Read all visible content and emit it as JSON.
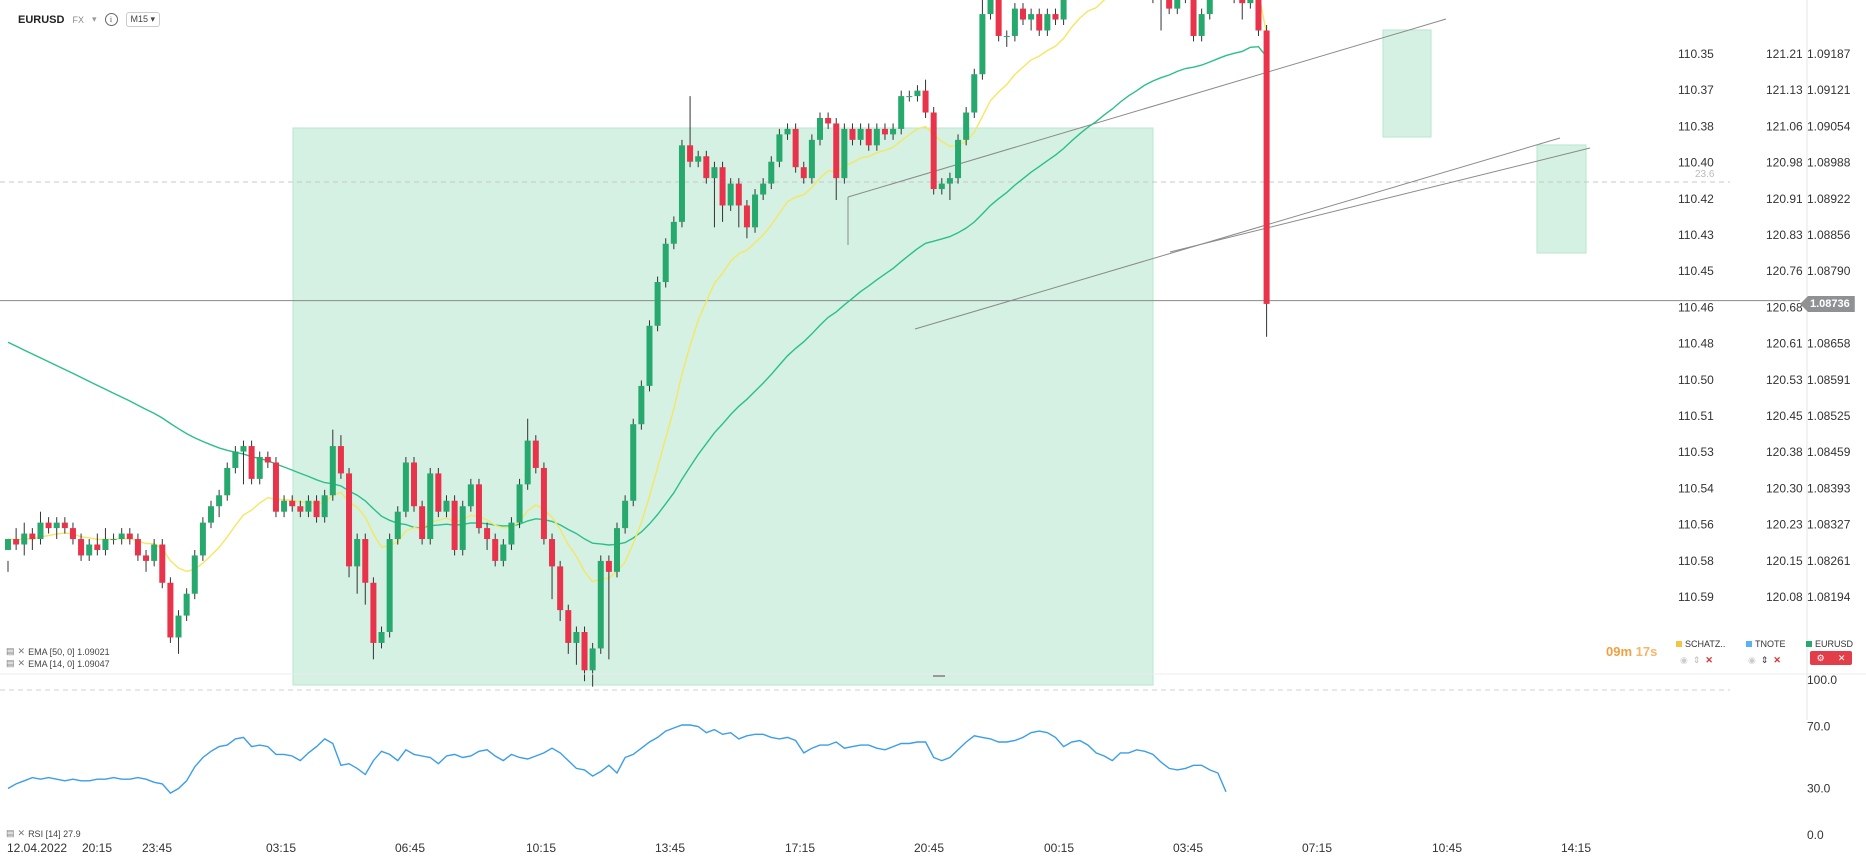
{
  "header": {
    "symbol": "EURUSD",
    "market": "FX",
    "timeframe": "M15"
  },
  "indicators": {
    "ema50": "EMA [50, 0] 1.09021",
    "ema14": "EMA [14, 0] 1.09047",
    "rsi": "RSI [14] 27.9"
  },
  "timer": {
    "minutes": "09m",
    "seconds": "17s"
  },
  "tickers": [
    "SCHATZ..",
    "TNOTE",
    "EURUSD"
  ],
  "current_price": "1.08736",
  "fib_label": "23.6",
  "colors": {
    "bull": "#27a86d",
    "bear": "#e8334a",
    "ema14": "#f5e663",
    "ema50": "#2bbf8a",
    "rsi": "#3a9ee8",
    "zone": "#d4f1e4",
    "schatz": "#f5c542",
    "tnote": "#5ab3f0",
    "eurusd": "#27a86d"
  },
  "chart_data": {
    "type": "candlestick",
    "symbol": "EURUSD",
    "timeframe": "M15",
    "price_axes": [
      {
        "name": "SCHATZ",
        "labels": [
          "110.35",
          "110.37",
          "110.38",
          "110.40",
          "110.42",
          "110.43",
          "110.45",
          "110.46",
          "110.48",
          "110.50",
          "110.51",
          "110.53",
          "110.54",
          "110.56",
          "110.58",
          "110.59"
        ]
      },
      {
        "name": "TNOTE",
        "labels": [
          "121.21",
          "121.13",
          "121.06",
          "120.98",
          "120.91",
          "120.83",
          "120.76",
          "120.68",
          "120.61",
          "120.53",
          "120.45",
          "120.38",
          "120.30",
          "120.23",
          "120.15",
          "120.08"
        ]
      },
      {
        "name": "EURUSD",
        "labels": [
          "1.09187",
          "1.09121",
          "1.09054",
          "1.08988",
          "1.08922",
          "1.08856",
          "1.08790",
          "1.08724",
          "1.08658",
          "1.08591",
          "1.08525",
          "1.08459",
          "1.08393",
          "1.08327",
          "1.08261",
          "1.08194"
        ]
      }
    ],
    "rsi_axis": [
      "100.0",
      "70.0",
      "30.0",
      "0.0"
    ],
    "time_labels": [
      "12.04.2022",
      "20:15",
      "23:45",
      "03:15",
      "06:45",
      "10:15",
      "13:45",
      "17:15",
      "20:45",
      "00:15",
      "03:45",
      "07:15",
      "10:45",
      "14:15"
    ],
    "candles": [
      [
        1.0828,
        1.083,
        1.0826,
        1.0824
      ],
      [
        1.083,
        1.0829,
        1.0832,
        1.0828
      ],
      [
        1.0829,
        1.0831,
        1.0833,
        1.0827
      ],
      [
        1.0831,
        1.083,
        1.0832,
        1.0828
      ],
      [
        1.083,
        1.0833,
        1.0835,
        1.0829
      ],
      [
        1.0833,
        1.0832,
        1.0834,
        1.0831
      ],
      [
        1.0832,
        1.0833,
        1.0834,
        1.083
      ],
      [
        1.0833,
        1.0832,
        1.0834,
        1.0831
      ],
      [
        1.0832,
        1.083,
        1.0833,
        1.0829
      ],
      [
        1.083,
        1.0827,
        1.0831,
        1.0826
      ],
      [
        1.0827,
        1.0829,
        1.083,
        1.0826
      ],
      [
        1.0829,
        1.0828,
        1.0831,
        1.0827
      ],
      [
        1.0828,
        1.083,
        1.0832,
        1.0827
      ],
      [
        1.083,
        1.083,
        1.0831,
        1.0829
      ],
      [
        1.083,
        1.0831,
        1.0832,
        1.0829
      ],
      [
        1.0831,
        1.083,
        1.0832,
        1.0829
      ],
      [
        1.083,
        1.0827,
        1.0831,
        1.0826
      ],
      [
        1.0827,
        1.0826,
        1.0828,
        1.0824
      ],
      [
        1.0826,
        1.0829,
        1.083,
        1.0825
      ],
      [
        1.0829,
        1.0822,
        1.083,
        1.0821
      ],
      [
        1.0822,
        1.0812,
        1.0823,
        1.0811
      ],
      [
        1.0812,
        1.0816,
        1.0817,
        1.0809
      ],
      [
        1.0816,
        1.082,
        1.0821,
        1.0815
      ],
      [
        1.082,
        1.0827,
        1.0828,
        1.0819
      ],
      [
        1.0827,
        1.0833,
        1.0834,
        1.0826
      ],
      [
        1.0833,
        1.0836,
        1.0837,
        1.0832
      ],
      [
        1.0836,
        1.0838,
        1.0839,
        1.0834
      ],
      [
        1.0838,
        1.0843,
        1.0844,
        1.0837
      ],
      [
        1.0843,
        1.0846,
        1.0847,
        1.0842
      ],
      [
        1.0846,
        1.0847,
        1.0848,
        1.084
      ],
      [
        1.0847,
        1.0841,
        1.0848,
        1.084
      ],
      [
        1.0841,
        1.0845,
        1.0846,
        1.084
      ],
      [
        1.0845,
        1.0844,
        1.0846,
        1.0843
      ],
      [
        1.0844,
        1.0835,
        1.0845,
        1.0834
      ],
      [
        1.0835,
        1.0837,
        1.0838,
        1.0834
      ],
      [
        1.0837,
        1.0836,
        1.0838,
        1.0835
      ],
      [
        1.0836,
        1.0835,
        1.0837,
        1.0834
      ],
      [
        1.0835,
        1.0837,
        1.0838,
        1.0834
      ],
      [
        1.0837,
        1.0834,
        1.0838,
        1.0833
      ],
      [
        1.0834,
        1.0838,
        1.0839,
        1.0833
      ],
      [
        1.0838,
        1.0847,
        1.085,
        1.0837
      ],
      [
        1.0847,
        1.0842,
        1.0849,
        1.0841
      ],
      [
        1.0842,
        1.0825,
        1.0843,
        1.0823
      ],
      [
        1.0825,
        1.083,
        1.0831,
        1.082
      ],
      [
        1.083,
        1.0822,
        1.0831,
        1.0818
      ],
      [
        1.0822,
        1.0811,
        1.0823,
        1.0808
      ],
      [
        1.0811,
        1.0813,
        1.0814,
        1.081
      ],
      [
        1.0813,
        1.083,
        1.0831,
        1.0812
      ],
      [
        1.083,
        1.0835,
        1.0836,
        1.0829
      ],
      [
        1.0835,
        1.0844,
        1.0845,
        1.0834
      ],
      [
        1.0844,
        1.0836,
        1.0845,
        1.0835
      ],
      [
        1.0836,
        1.083,
        1.0837,
        1.0829
      ],
      [
        1.083,
        1.0842,
        1.0843,
        1.0829
      ],
      [
        1.0842,
        1.0835,
        1.0843,
        1.0834
      ],
      [
        1.0835,
        1.0837,
        1.0838,
        1.0834
      ],
      [
        1.0837,
        1.0828,
        1.0838,
        1.0827
      ],
      [
        1.0828,
        1.0836,
        1.0837,
        1.0827
      ],
      [
        1.0836,
        1.084,
        1.0841,
        1.0835
      ],
      [
        1.084,
        1.0832,
        1.0841,
        1.0831
      ],
      [
        1.0832,
        1.083,
        1.0833,
        1.0828
      ],
      [
        1.083,
        1.0826,
        1.0831,
        1.0825
      ],
      [
        1.0826,
        1.0829,
        1.083,
        1.0825
      ],
      [
        1.0829,
        1.0833,
        1.0834,
        1.0828
      ],
      [
        1.0833,
        1.084,
        1.0841,
        1.0832
      ],
      [
        1.084,
        1.0848,
        1.0852,
        1.0839
      ],
      [
        1.0848,
        1.0843,
        1.0849,
        1.0842
      ],
      [
        1.0843,
        1.083,
        1.0844,
        1.0829
      ],
      [
        1.083,
        1.0825,
        1.0831,
        1.0819
      ],
      [
        1.0825,
        1.0817,
        1.0826,
        1.0815
      ],
      [
        1.0817,
        1.0811,
        1.0818,
        1.0809
      ],
      [
        1.0811,
        1.0813,
        1.0814,
        1.0807
      ],
      [
        1.0813,
        1.0806,
        1.0814,
        1.0804
      ],
      [
        1.0806,
        1.081,
        1.0811,
        1.0803
      ],
      [
        1.081,
        1.0826,
        1.0827,
        1.0809
      ],
      [
        1.0826,
        1.0824,
        1.0827,
        1.0808
      ],
      [
        1.0824,
        1.0832,
        1.0833,
        1.0823
      ],
      [
        1.0832,
        1.0837,
        1.0838,
        1.0831
      ],
      [
        1.0837,
        1.0851,
        1.0852,
        1.0836
      ],
      [
        1.0851,
        1.0858,
        1.0859,
        1.085
      ],
      [
        1.0858,
        1.0869,
        1.087,
        1.0857
      ],
      [
        1.0869,
        1.0877,
        1.0878,
        1.0868
      ],
      [
        1.0877,
        1.0884,
        1.0885,
        1.0876
      ],
      [
        1.0884,
        1.0888,
        1.0889,
        1.0883
      ],
      [
        1.0888,
        1.0902,
        1.0903,
        1.0887
      ],
      [
        1.0902,
        1.0899,
        1.0911,
        1.0898
      ],
      [
        1.0899,
        1.09,
        1.0901,
        1.0898
      ],
      [
        1.09,
        1.0896,
        1.0901,
        1.0895
      ],
      [
        1.0896,
        1.0898,
        1.0899,
        1.0887
      ],
      [
        1.0898,
        1.0891,
        1.0899,
        1.0888
      ],
      [
        1.0891,
        1.0895,
        1.0896,
        1.089
      ],
      [
        1.0895,
        1.0891,
        1.0896,
        1.0887
      ],
      [
        1.0891,
        1.0887,
        1.0892,
        1.0885
      ],
      [
        1.0887,
        1.0893,
        1.0894,
        1.0886
      ],
      [
        1.0893,
        1.0895,
        1.0896,
        1.0892
      ],
      [
        1.0895,
        1.0899,
        1.09,
        1.0894
      ],
      [
        1.0899,
        1.0904,
        1.0905,
        1.0898
      ],
      [
        1.0904,
        1.0905,
        1.0906,
        1.0903
      ],
      [
        1.0905,
        1.0898,
        1.0906,
        1.0897
      ],
      [
        1.0898,
        1.0896,
        1.0899,
        1.0895
      ],
      [
        1.0896,
        1.0903,
        1.0904,
        1.0895
      ],
      [
        1.0903,
        1.0907,
        1.0908,
        1.0902
      ],
      [
        1.0907,
        1.0906,
        1.0908,
        1.0905
      ],
      [
        1.0906,
        1.0896,
        1.0907,
        1.0892
      ],
      [
        1.0896,
        1.0905,
        1.0906,
        1.0895
      ],
      [
        1.0905,
        1.0903,
        1.0906,
        1.0902
      ],
      [
        1.0903,
        1.0905,
        1.0906,
        1.0902
      ],
      [
        1.0905,
        1.0902,
        1.0906,
        1.0901
      ],
      [
        1.0902,
        1.0905,
        1.0906,
        1.0901
      ],
      [
        1.0905,
        1.0904,
        1.0906,
        1.0903
      ],
      [
        1.0904,
        1.0905,
        1.0906,
        1.0903
      ],
      [
        1.0905,
        1.0911,
        1.0912,
        1.0904
      ],
      [
        1.0911,
        1.0911,
        1.0912,
        1.091
      ],
      [
        1.0911,
        1.0912,
        1.0913,
        1.091
      ],
      [
        1.0912,
        1.0908,
        1.0914,
        1.0907
      ],
      [
        1.0908,
        1.0894,
        1.0909,
        1.0893
      ],
      [
        1.0894,
        1.0895,
        1.0896,
        1.0893
      ],
      [
        1.0895,
        1.0896,
        1.0897,
        1.0892
      ],
      [
        1.0896,
        1.0903,
        1.0904,
        1.0895
      ],
      [
        1.0903,
        1.0908,
        1.0909,
        1.0902
      ],
      [
        1.0908,
        1.0915,
        1.0916,
        1.0907
      ],
      [
        1.0915,
        1.0926,
        1.0931,
        1.0914
      ],
      [
        1.0926,
        1.0929,
        1.093,
        1.0925
      ],
      [
        1.0929,
        1.0922,
        1.093,
        1.0921
      ],
      [
        1.0922,
        1.0922,
        1.0923,
        1.092
      ],
      [
        1.0922,
        1.0927,
        1.0928,
        1.0921
      ],
      [
        1.0927,
        1.0925,
        1.0928,
        1.0924
      ],
      [
        1.0925,
        1.0926,
        1.0927,
        1.0923
      ],
      [
        1.0926,
        1.0923,
        1.0927,
        1.0922
      ],
      [
        1.0923,
        1.0926,
        1.0927,
        1.0922
      ],
      [
        1.0926,
        1.0925,
        1.0927,
        1.0924
      ],
      [
        1.0925,
        1.0931,
        1.0932,
        1.0924
      ],
      [
        1.0931,
        1.0937,
        1.0938,
        1.093
      ],
      [
        1.0937,
        1.0936,
        1.0938,
        1.0935
      ],
      [
        1.0936,
        1.0935,
        1.0937,
        1.0933
      ],
      [
        1.0935,
        1.0931,
        1.0936,
        1.093
      ],
      [
        1.0931,
        1.0938,
        1.0939,
        1.093
      ],
      [
        1.0938,
        1.0935,
        1.0939,
        1.0934
      ],
      [
        1.0935,
        1.0941,
        1.0942,
        1.0934
      ],
      [
        1.0941,
        1.0939,
        1.0942,
        1.0938
      ],
      [
        1.0939,
        1.0935,
        1.0941,
        1.0934
      ],
      [
        1.0935,
        1.0938,
        1.0945,
        1.0934
      ],
      [
        1.0938,
        1.0932,
        1.0939,
        1.0928
      ],
      [
        1.0932,
        1.0929,
        1.0933,
        1.0923
      ],
      [
        1.0929,
        1.0927,
        1.093,
        1.0926
      ],
      [
        1.0927,
        1.0932,
        1.0933,
        1.0926
      ],
      [
        1.0932,
        1.0929,
        1.0933,
        1.0928
      ],
      [
        1.0929,
        1.0922,
        1.093,
        1.0921
      ],
      [
        1.0922,
        1.0926,
        1.0927,
        1.0921
      ],
      [
        1.0926,
        1.0931,
        1.0932,
        1.0925
      ],
      [
        1.0931,
        1.0933,
        1.0935,
        1.093
      ],
      [
        1.0933,
        1.0932,
        1.0934,
        1.0931
      ],
      [
        1.0932,
        1.0929,
        1.0933,
        1.0928
      ],
      [
        1.0929,
        1.0928,
        1.093,
        1.0925
      ],
      [
        1.0928,
        1.0938,
        1.0939,
        1.0927
      ],
      [
        1.0938,
        1.0923,
        1.0939,
        1.0922
      ],
      [
        1.0923,
        1.0873,
        1.0924,
        1.0867
      ]
    ],
    "rsi_values": [
      30,
      33,
      35,
      37,
      36,
      37,
      36,
      35,
      36,
      35,
      35,
      36,
      36,
      37,
      36,
      36,
      37,
      36,
      34,
      33,
      27,
      30,
      35,
      44,
      50,
      54,
      57,
      58,
      62,
      63,
      57,
      58,
      57,
      52,
      52,
      51,
      48,
      53,
      57,
      62,
      59,
      45,
      46,
      43,
      39,
      48,
      54,
      52,
      48,
      55,
      52,
      51,
      50,
      46,
      51,
      52,
      50,
      51,
      54,
      55,
      51,
      48,
      52,
      50,
      49,
      51,
      53,
      56,
      53,
      48,
      43,
      42,
      38,
      41,
      45,
      40,
      50,
      52,
      56,
      60,
      63,
      67,
      69,
      71,
      71,
      70,
      66,
      68,
      65,
      66,
      62,
      64,
      65,
      65,
      63,
      62,
      63,
      61,
      53,
      56,
      58,
      58,
      60,
      56,
      57,
      58,
      58,
      56,
      55,
      57,
      59,
      59,
      60,
      60,
      50,
      48,
      50,
      55,
      60,
      64,
      63,
      62,
      60,
      60,
      61,
      63,
      66,
      67,
      66,
      63,
      57,
      60,
      61,
      58,
      53,
      51,
      48,
      53,
      53,
      55,
      54,
      52,
      47,
      43,
      42,
      43,
      45,
      45,
      42,
      40,
      27.9
    ]
  }
}
